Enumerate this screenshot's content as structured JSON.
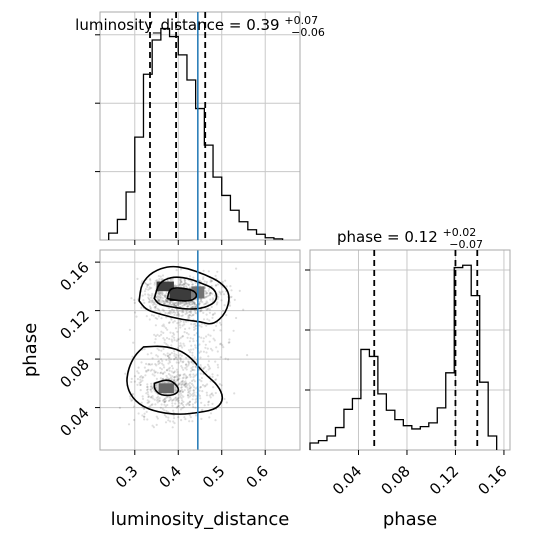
{
  "chart_data": {
    "type": "corner",
    "truths": {
      "luminosity_distance": 0.445
    },
    "panels": {
      "luminosity_distance_hist": {
        "title_param": "luminosity_distance",
        "title_value": "0.39",
        "title_plus": "+0.07",
        "title_minus": "−0.06",
        "xlim": [
          0.22,
          0.68
        ],
        "quantiles": [
          0.335,
          0.395,
          0.462
        ],
        "bin_edges": [
          0.24,
          0.26,
          0.28,
          0.3,
          0.32,
          0.34,
          0.36,
          0.38,
          0.4,
          0.42,
          0.44,
          0.46,
          0.48,
          0.5,
          0.52,
          0.54,
          0.56,
          0.58,
          0.6,
          0.62,
          0.64
        ],
        "counts": [
          0.6,
          1.8,
          4.2,
          9.0,
          14.5,
          17.5,
          18.5,
          17.8,
          16.2,
          14.0,
          11.5,
          8.3,
          5.5,
          3.9,
          2.6,
          1.6,
          0.9,
          0.5,
          0.2,
          0.1
        ]
      },
      "phase_hist": {
        "title_param": "phase",
        "title_value": "0.12",
        "title_plus": "+0.02",
        "title_minus": "−0.07",
        "xlim": [
          0.0,
          0.165
        ],
        "quantiles": [
          0.053,
          0.12,
          0.138
        ],
        "bin_edges": [
          0.0,
          0.007,
          0.014,
          0.021,
          0.028,
          0.035,
          0.042,
          0.049,
          0.056,
          0.063,
          0.07,
          0.077,
          0.084,
          0.091,
          0.098,
          0.105,
          0.112,
          0.119,
          0.126,
          0.133,
          0.14,
          0.147,
          0.154
        ],
        "counts": [
          1.5,
          2.0,
          3.0,
          4.8,
          8.7,
          11.0,
          21.5,
          20.0,
          12.0,
          8.5,
          6.5,
          5.2,
          4.5,
          5.0,
          5.8,
          9.0,
          16.5,
          39.0,
          39.5,
          33.0,
          14.5,
          3.0
        ]
      },
      "joint": {
        "xlim": [
          0.22,
          0.68
        ],
        "ylim": [
          0.005,
          0.17
        ],
        "contours": [
          [
            [
              0.31,
              0.128
            ],
            [
              0.315,
              0.142
            ],
            [
              0.34,
              0.152
            ],
            [
              0.38,
              0.157
            ],
            [
              0.42,
              0.155
            ],
            [
              0.46,
              0.15
            ],
            [
              0.5,
              0.143
            ],
            [
              0.52,
              0.133
            ],
            [
              0.51,
              0.118
            ],
            [
              0.48,
              0.108
            ],
            [
              0.45,
              0.111
            ],
            [
              0.42,
              0.112
            ],
            [
              0.38,
              0.115
            ],
            [
              0.35,
              0.118
            ],
            [
              0.325,
              0.121
            ],
            [
              0.31,
              0.128
            ]
          ],
          [
            [
              0.345,
              0.13
            ],
            [
              0.355,
              0.143
            ],
            [
              0.385,
              0.148
            ],
            [
              0.42,
              0.147
            ],
            [
              0.45,
              0.143
            ],
            [
              0.485,
              0.138
            ],
            [
              0.49,
              0.128
            ],
            [
              0.46,
              0.122
            ],
            [
              0.42,
              0.121
            ],
            [
              0.385,
              0.123
            ],
            [
              0.355,
              0.125
            ],
            [
              0.345,
              0.13
            ]
          ],
          [
            [
              0.375,
              0.13
            ],
            [
              0.38,
              0.138
            ],
            [
              0.4,
              0.139
            ],
            [
              0.435,
              0.137
            ],
            [
              0.445,
              0.132
            ],
            [
              0.43,
              0.128
            ],
            [
              0.4,
              0.128
            ],
            [
              0.375,
              0.13
            ]
          ],
          [
            [
              0.32,
              0.09
            ],
            [
              0.37,
              0.091
            ],
            [
              0.42,
              0.085
            ],
            [
              0.46,
              0.068
            ],
            [
              0.49,
              0.059
            ],
            [
              0.505,
              0.048
            ],
            [
              0.49,
              0.039
            ],
            [
              0.45,
              0.036
            ],
            [
              0.4,
              0.034
            ],
            [
              0.34,
              0.037
            ],
            [
              0.3,
              0.045
            ],
            [
              0.28,
              0.058
            ],
            [
              0.285,
              0.072
            ],
            [
              0.3,
              0.083
            ],
            [
              0.32,
              0.09
            ]
          ],
          [
            [
              0.345,
              0.06
            ],
            [
              0.38,
              0.064
            ],
            [
              0.405,
              0.055
            ],
            [
              0.39,
              0.05
            ],
            [
              0.36,
              0.05
            ],
            [
              0.345,
              0.055
            ],
            [
              0.345,
              0.06
            ]
          ]
        ],
        "dense_cells": [
          {
            "x": 0.35,
            "y": 0.136,
            "w": 0.04,
            "h": 0.008,
            "level": 0.75
          },
          {
            "x": 0.38,
            "y": 0.128,
            "w": 0.05,
            "h": 0.01,
            "level": 0.95
          },
          {
            "x": 0.43,
            "y": 0.13,
            "w": 0.03,
            "h": 0.01,
            "level": 0.55
          },
          {
            "x": 0.355,
            "y": 0.052,
            "w": 0.035,
            "h": 0.008,
            "level": 0.7
          }
        ]
      }
    },
    "axes": {
      "luminosity_distance": {
        "label": "luminosity_distance",
        "ticks": [
          "0.3",
          "0.4",
          "0.5",
          "0.6"
        ],
        "tick_values": [
          0.3,
          0.4,
          0.5,
          0.6
        ]
      },
      "phase": {
        "label": "phase",
        "ticks": [
          "0.04",
          "0.08",
          "0.12",
          "0.16"
        ],
        "tick_values": [
          0.04,
          0.08,
          0.12,
          0.16
        ]
      }
    }
  }
}
